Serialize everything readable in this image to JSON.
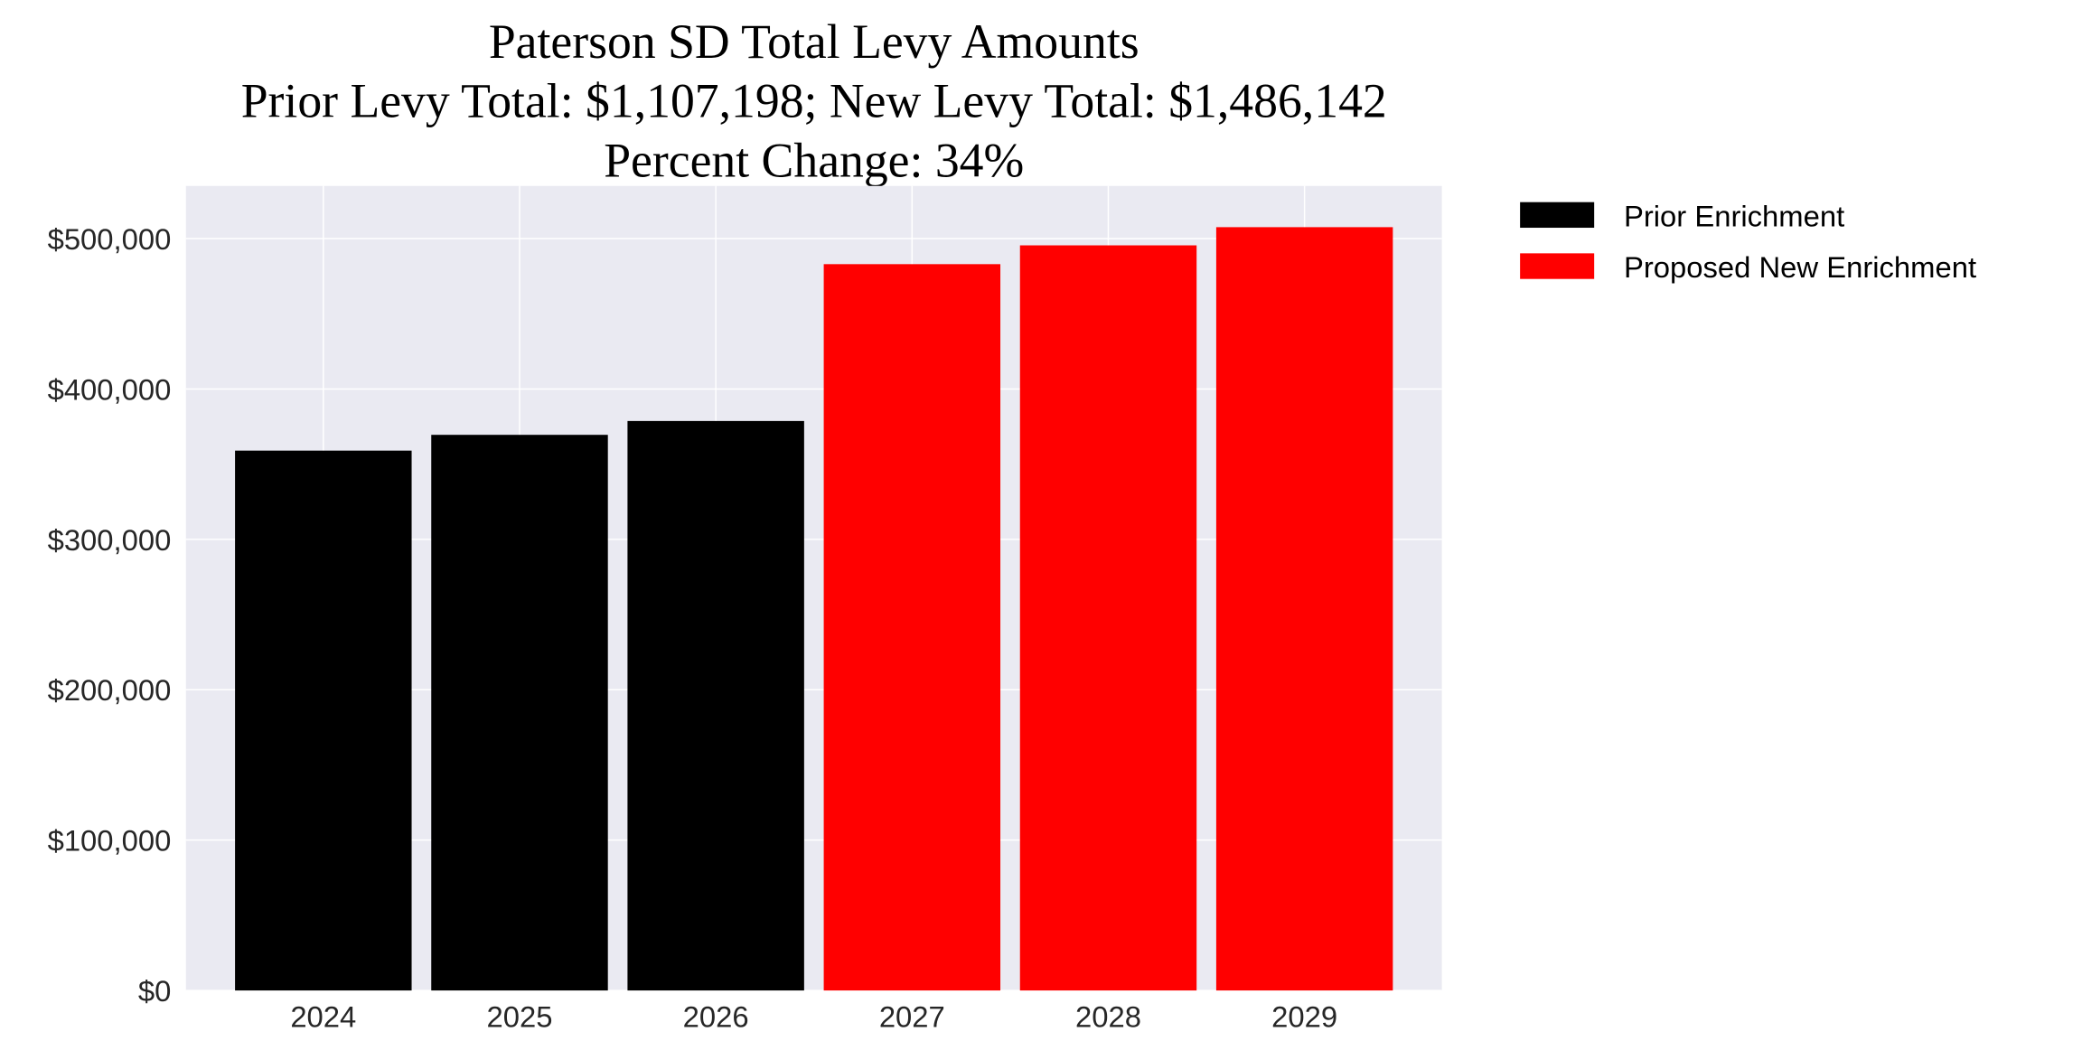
{
  "chart_data": {
    "type": "bar",
    "title": "Paterson SD Total Levy Amounts",
    "subtitle_lines": [
      "Prior Levy Total:  $1,107,198; New Levy Total: $1,486,142",
      "Percent Change: 34%"
    ],
    "xlabel": "",
    "ylabel": "",
    "categories": [
      "2024",
      "2025",
      "2026",
      "2027",
      "2028",
      "2029"
    ],
    "values": [
      359000,
      369500,
      378700,
      483000,
      495500,
      507600
    ],
    "bar_series": [
      "Prior Enrichment",
      "Prior Enrichment",
      "Prior Enrichment",
      "Proposed New Enrichment",
      "Proposed New Enrichment",
      "Proposed New Enrichment"
    ],
    "series": [
      {
        "name": "Prior Enrichment",
        "color": "#000000"
      },
      {
        "name": "Proposed New Enrichment",
        "color": "#ff0000"
      }
    ],
    "yticks": [
      0,
      100000,
      200000,
      300000,
      400000,
      500000
    ],
    "ytick_labels": [
      "$0",
      "$100,000",
      "$200,000",
      "$300,000",
      "$400,000",
      "$500,000"
    ],
    "ylim": [
      0,
      535000
    ],
    "grid": true,
    "legend_placement": "outside top-right",
    "background": "#eaeaf2"
  }
}
